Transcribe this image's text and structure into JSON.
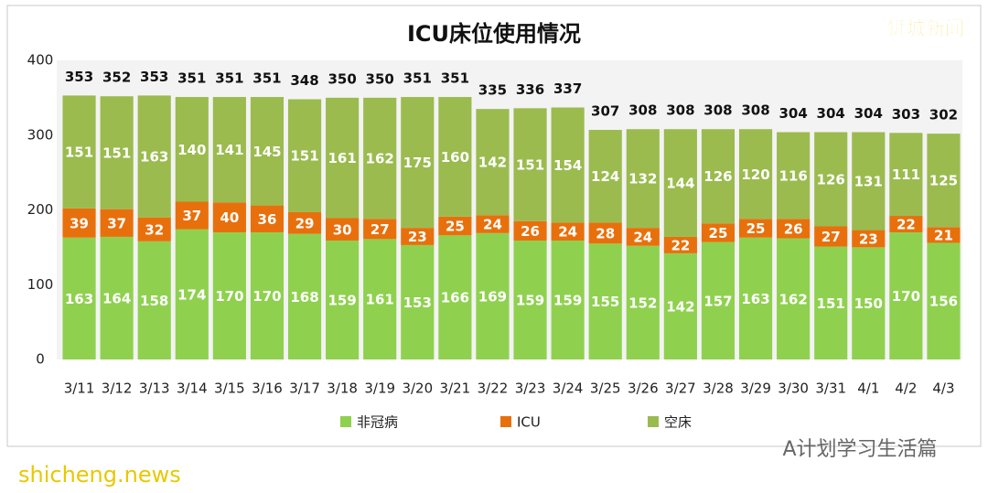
{
  "chart_data": {
    "type": "stacked-bar",
    "title": "ICU床位使用情况",
    "categories": [
      "3/11",
      "3/12",
      "3/13",
      "3/14",
      "3/15",
      "3/16",
      "3/17",
      "3/18",
      "3/19",
      "3/20",
      "3/21",
      "3/22",
      "3/23",
      "3/24",
      "3/25",
      "3/26",
      "3/27",
      "3/28",
      "3/29",
      "3/30",
      "3/31",
      "4/1",
      "4/2",
      "4/3"
    ],
    "series": [
      {
        "name": "非冠病",
        "color": "#8fd14f",
        "values": [
          163,
          164,
          158,
          174,
          170,
          170,
          168,
          159,
          161,
          153,
          166,
          169,
          159,
          159,
          155,
          152,
          142,
          157,
          163,
          162,
          151,
          150,
          170,
          156
        ]
      },
      {
        "name": "ICU",
        "color": "#e8700c",
        "values": [
          39,
          37,
          32,
          37,
          40,
          36,
          29,
          30,
          27,
          23,
          25,
          24,
          26,
          24,
          28,
          24,
          22,
          25,
          25,
          26,
          27,
          23,
          22,
          21
        ]
      },
      {
        "name": "空床",
        "color": "#9bbb4f",
        "values": [
          151,
          151,
          163,
          140,
          141,
          145,
          151,
          161,
          162,
          175,
          160,
          142,
          151,
          154,
          124,
          132,
          144,
          126,
          120,
          116,
          126,
          131,
          111,
          125
        ]
      }
    ],
    "totals": [
      353,
      352,
      353,
      351,
      351,
      351,
      348,
      350,
      350,
      351,
      351,
      335,
      336,
      337,
      307,
      308,
      308,
      308,
      308,
      304,
      304,
      304,
      303,
      302
    ],
    "ylim": [
      0,
      400
    ],
    "yticks": [
      0,
      100,
      200,
      300,
      400
    ],
    "grid": false
  },
  "page": {
    "brand": "狮城新闻",
    "source": "shicheng.news",
    "footer": "A计划学习生活篇"
  }
}
